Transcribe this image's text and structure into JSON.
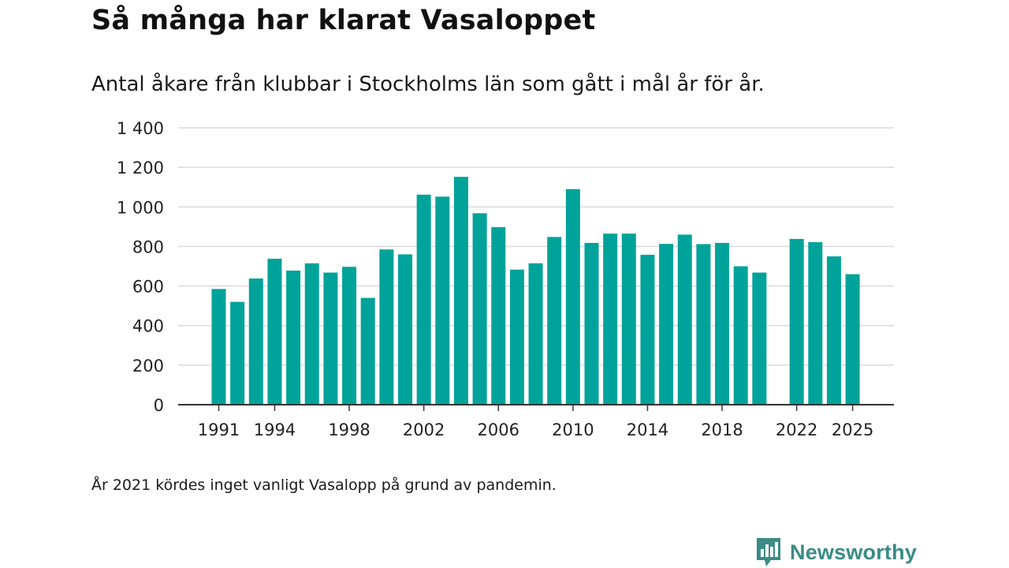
{
  "title": "Så många har klarat Vasaloppet",
  "subtitle": "Antal åkare från klubbar i Stockholms län som gått i mål år för år.",
  "footnote": "År 2021 kördes inget vanligt Vasalopp på grund av pandemin.",
  "brand": {
    "name": "Newsworthy",
    "icon": "newsworthy-logo-icon",
    "color": "#3a8c85"
  },
  "chart_data": {
    "type": "bar",
    "bar_color": "#00a39a",
    "x": [
      1991,
      1992,
      1993,
      1994,
      1995,
      1996,
      1997,
      1998,
      1999,
      2000,
      2001,
      2002,
      2003,
      2004,
      2005,
      2006,
      2007,
      2008,
      2009,
      2010,
      2011,
      2012,
      2013,
      2014,
      2015,
      2016,
      2017,
      2018,
      2019,
      2020,
      2021,
      2022,
      2023,
      2024,
      2025
    ],
    "values": [
      585,
      520,
      638,
      738,
      678,
      715,
      668,
      697,
      540,
      785,
      760,
      1062,
      1052,
      1152,
      968,
      898,
      683,
      715,
      848,
      1090,
      818,
      865,
      865,
      758,
      813,
      860,
      812,
      818,
      700,
      668,
      null,
      838,
      822,
      750,
      660
    ],
    "x_tick_labels": [
      "1991",
      "1994",
      "1998",
      "2002",
      "2006",
      "2010",
      "2014",
      "2018",
      "2022",
      "2025"
    ],
    "y_tick_values": [
      0,
      200,
      400,
      600,
      800,
      1000,
      1200,
      1400
    ],
    "y_tick_labels": [
      "0",
      "200",
      "400",
      "600",
      "800",
      "1 000",
      "1 200",
      "1 400"
    ],
    "ylim": [
      0,
      1400
    ],
    "grid": true,
    "legend": "none"
  }
}
